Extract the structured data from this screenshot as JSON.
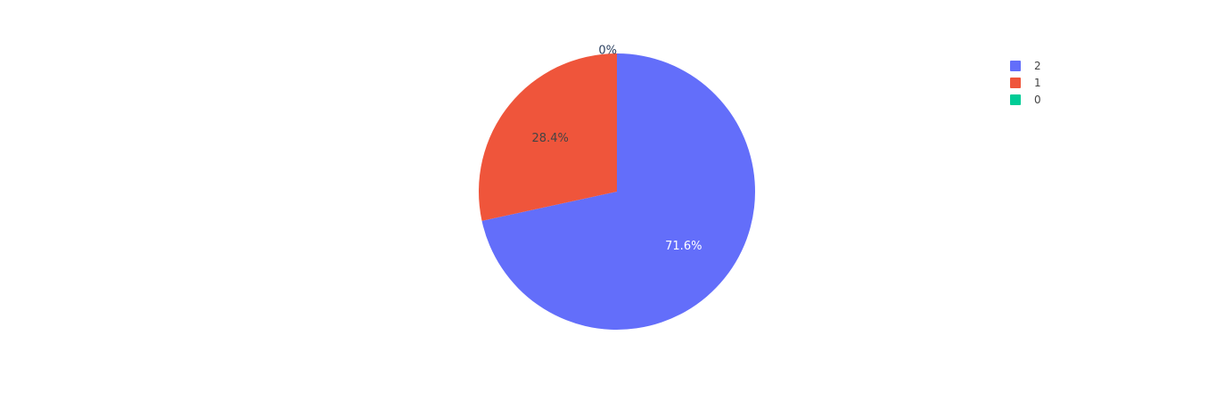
{
  "chart_data": {
    "type": "pie",
    "labels": [
      "2",
      "1",
      "0"
    ],
    "values": [
      71.6,
      28.4,
      0
    ],
    "text_labels": [
      "71.6%",
      "28.4%",
      "0%"
    ],
    "colors": [
      "#636efa",
      "#EF553B",
      "#00cc96"
    ],
    "label_colors": [
      "#ffffff",
      "#444444",
      "#444444"
    ],
    "direction": "clockwise",
    "start_angle_deg": 0,
    "legend": {
      "placement": "top-right",
      "entries": [
        "2",
        "1",
        "0"
      ]
    }
  }
}
